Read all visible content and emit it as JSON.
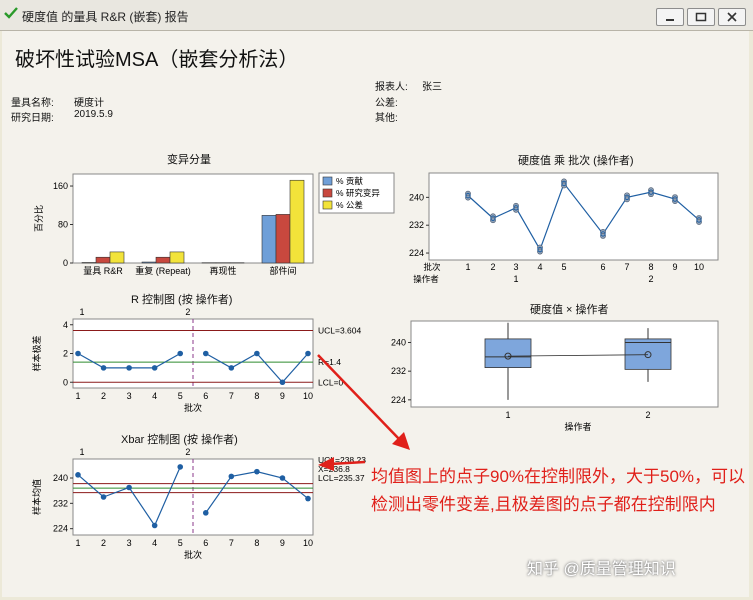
{
  "window": {
    "title": "硬度值 的量具 R&R (嵌套) 报告"
  },
  "report": {
    "heading": "破坏性试验MSA（嵌套分析法）",
    "gauge_name_label": "量具名称:",
    "gauge_name": "硬度计",
    "study_date_label": "研究日期:",
    "study_date": "2019.5.9",
    "reporter_label": "报表人:",
    "reporter": "张三",
    "tolerance_label": "公差:",
    "other_label": "其他:"
  },
  "annotation": "均值图上的点子90%在控制限外，大于50%，可以检测出零件变差,且极差图的点子都在控制限内",
  "watermark": "知乎 @质量管理知识",
  "colors": {
    "contribution": "#6f9fd8",
    "study_var": "#c8483e",
    "tolerance": "#f2e33a",
    "series": "#1f5fa3",
    "ucl": "#8b1a1a",
    "center": "#2e8b2e",
    "annotation": "#e0201a"
  },
  "chart_data": [
    {
      "type": "bar",
      "title": "变异分量",
      "ylabel": "百分比",
      "categories": [
        "量具 R&R",
        "重复 (Repeat)",
        "再现性",
        "部件间"
      ],
      "series": [
        {
          "name": "% 贡献",
          "values": [
            1,
            2,
            0,
            99
          ]
        },
        {
          "name": "% 研究变异",
          "values": [
            12,
            12,
            0,
            101
          ]
        },
        {
          "name": "% 公差",
          "values": [
            23,
            23,
            0,
            172
          ]
        }
      ],
      "yticks": [
        0,
        80,
        160
      ],
      "ylim": [
        0,
        185
      ],
      "legend": "right"
    },
    {
      "type": "line",
      "title": "R 控制图 (按 操作者)",
      "xlabel": "批次",
      "ylabel": "样本极差",
      "x": [
        1,
        2,
        3,
        4,
        5,
        6,
        7,
        8,
        9,
        10
      ],
      "y": [
        2,
        1,
        1,
        1,
        2,
        2,
        1,
        2,
        0,
        2
      ],
      "groups": [
        "1",
        "2"
      ],
      "yticks": [
        0,
        2,
        4
      ],
      "ylim": [
        -0.4,
        4.4
      ],
      "limits": {
        "ucl_label": "UCL=3.604",
        "ucl": 3.604,
        "center_label": "R=1.4",
        "center": 1.4,
        "lcl_label": "LCL=0",
        "lcl": 0
      }
    },
    {
      "type": "line",
      "title": "Xbar 控制图 (按 操作者)",
      "xlabel": "批次",
      "ylabel": "样本均值",
      "x": [
        1,
        2,
        3,
        4,
        5,
        6,
        7,
        8,
        9,
        10
      ],
      "y": [
        241,
        234,
        237,
        225,
        243.5,
        229,
        240.5,
        242,
        240,
        233.5
      ],
      "groups": [
        "1",
        "2"
      ],
      "yticks": [
        224,
        232,
        240
      ],
      "ylim": [
        222,
        246
      ],
      "limits": {
        "ucl_label": "UCL=238.23",
        "ucl": 238.23,
        "center_label": "X=236.8",
        "center": 236.8,
        "lcl_label": "LCL=235.37",
        "lcl": 235.37
      }
    },
    {
      "type": "line",
      "title": "硬度值 乘 批次 (操作者)",
      "x_row_label": "批次",
      "group_row_label": "操作者",
      "groups": [
        "1",
        "2"
      ],
      "x": [
        1,
        2,
        3,
        4,
        5,
        6,
        7,
        8,
        9,
        10
      ],
      "y": [
        240.5,
        234,
        237,
        225,
        244,
        229.5,
        240,
        241.5,
        239.5,
        233.5
      ],
      "yticks": [
        224,
        232,
        240
      ],
      "ylim": [
        222,
        247
      ]
    },
    {
      "type": "box",
      "title": "硬度值 × 操作者",
      "xlabel": "操作者",
      "categories": [
        "1",
        "2"
      ],
      "yticks": [
        224,
        232,
        240
      ],
      "ylim": [
        222,
        246
      ],
      "boxes": [
        {
          "min": 224,
          "q1": 233,
          "median": 236,
          "q3": 241,
          "max": 245.5,
          "mean": 236.2
        },
        {
          "min": 229,
          "q1": 232.5,
          "median": 240,
          "q3": 241,
          "max": 244,
          "mean": 236.6
        }
      ]
    }
  ]
}
